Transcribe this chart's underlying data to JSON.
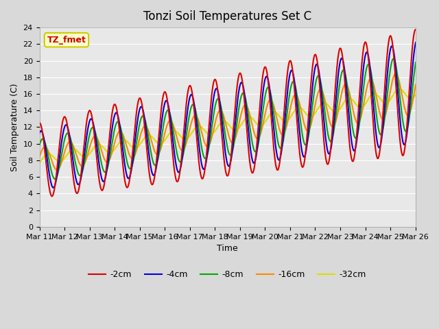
{
  "title": "Tonzi Soil Temperatures Set C",
  "xlabel": "Time",
  "ylabel": "Soil Temperature (C)",
  "ylim": [
    0,
    24
  ],
  "yticks": [
    0,
    2,
    4,
    6,
    8,
    10,
    12,
    14,
    16,
    18,
    20,
    22,
    24
  ],
  "bg_color": "#e8e8e8",
  "fig_bg": "#d9d9d9",
  "annotation_text": "TZ_fmet",
  "annotation_bg": "#ffffcc",
  "annotation_border": "#cccc00",
  "series_colors": [
    "#dd0000",
    "#0000dd",
    "#00aa00",
    "#ff8800",
    "#dddd00"
  ],
  "series_labels": [
    "-2cm",
    "-4cm",
    "-8cm",
    "-16cm",
    "-32cm"
  ],
  "xtick_labels": [
    "Mar 11",
    "Mar 12",
    "Mar 13",
    "Mar 14",
    "Mar 15",
    "Mar 16",
    "Mar 17",
    "Mar 18",
    "Mar 19",
    "Mar 20",
    "Mar 21",
    "Mar 22",
    "Mar 23",
    "Mar 24",
    "Mar 25",
    "Mar 26"
  ],
  "n_days": 16
}
